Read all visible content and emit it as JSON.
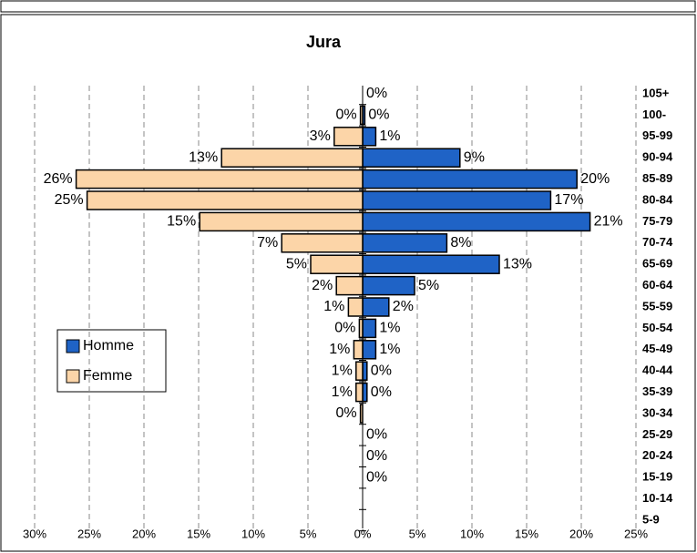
{
  "chart_data": {
    "type": "pyramid",
    "title": "Jura",
    "categories": [
      "105+",
      "100-",
      "95-99",
      "90-94",
      "85-89",
      "80-84",
      "75-79",
      "70-74",
      "65-69",
      "60-64",
      "55-59",
      "50-54",
      "45-49",
      "40-44",
      "35-39",
      "30-34",
      "25-29",
      "20-24",
      "15-19",
      "10-14",
      "5-9"
    ],
    "series": [
      {
        "name": "Homme",
        "color": "#1f63c6",
        "values": [
          0,
          0.2,
          1.2,
          8.9,
          19.6,
          17.2,
          20.8,
          7.7,
          12.5,
          4.75,
          2.4,
          1.2,
          1.2,
          0.4,
          0.4,
          null,
          0,
          0,
          0,
          null,
          null
        ],
        "value_labels": [
          "0%",
          "0%",
          "1%",
          "9%",
          "20%",
          "17%",
          "21%",
          "8%",
          "13%",
          "5%",
          "2%",
          "1%",
          "1%",
          "0%",
          "0%",
          null,
          "0%",
          "0%",
          "0%",
          null,
          null
        ]
      },
      {
        "name": "Femme",
        "color": "#fcd5a8",
        "values": [
          null,
          0.2,
          2.6,
          12.9,
          26.2,
          25.2,
          14.9,
          7.4,
          4.75,
          2.4,
          1.3,
          0.3,
          0.8,
          0.6,
          0.6,
          0.2,
          null,
          null,
          null,
          null,
          null
        ],
        "value_labels": [
          null,
          "0%",
          "3%",
          "13%",
          "26%",
          "25%",
          "15%",
          "7%",
          "5%",
          "2%",
          "1%",
          "0%",
          "1%",
          "1%",
          "1%",
          "0%",
          null,
          null,
          null,
          null,
          null
        ]
      }
    ],
    "xlim": [
      -30,
      25
    ],
    "xticks": [
      {
        "value": -30,
        "label": "30%"
      },
      {
        "value": -25,
        "label": "25%"
      },
      {
        "value": -20,
        "label": "20%"
      },
      {
        "value": -15,
        "label": "15%"
      },
      {
        "value": -10,
        "label": "10%"
      },
      {
        "value": -5,
        "label": "5%"
      },
      {
        "value": 0,
        "label": "0%"
      },
      {
        "value": 5,
        "label": "5%"
      },
      {
        "value": 10,
        "label": "10%"
      },
      {
        "value": 15,
        "label": "15%"
      },
      {
        "value": 20,
        "label": "20%"
      },
      {
        "value": 25,
        "label": "25%"
      }
    ],
    "grid": true,
    "legend": "left"
  }
}
